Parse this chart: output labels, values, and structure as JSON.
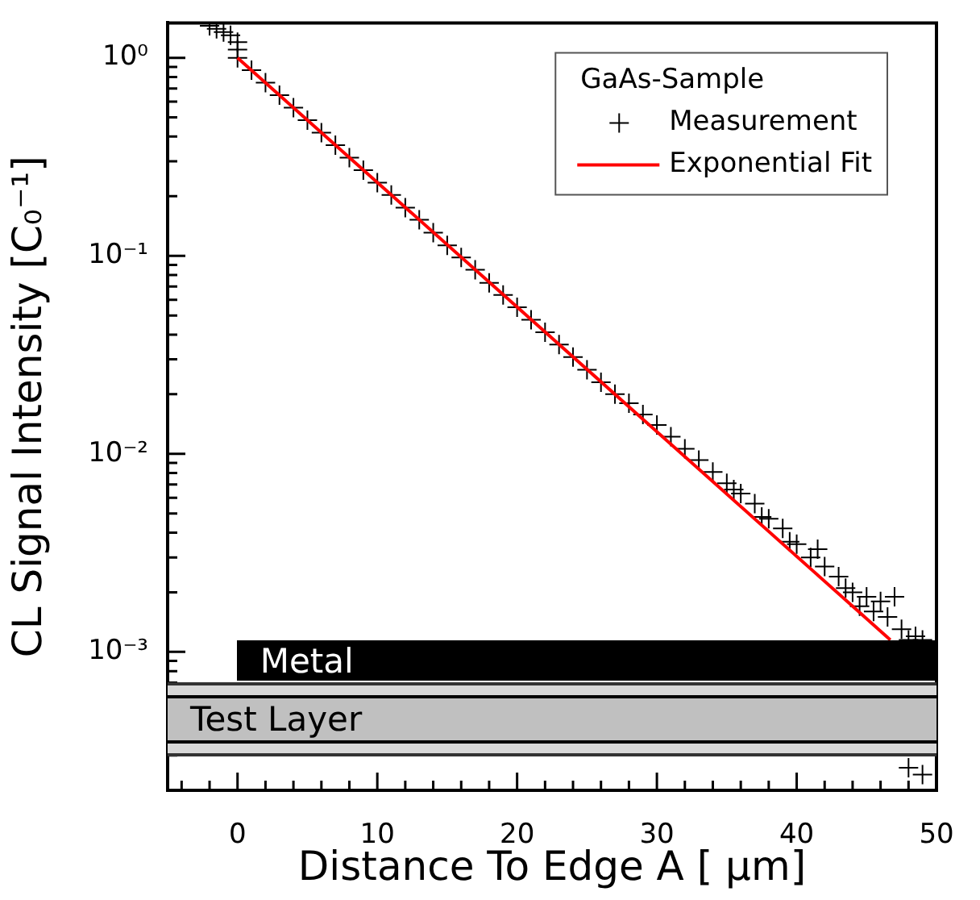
{
  "chart_data": {
    "type": "scatter",
    "xlabel": "Distance To Edge A [ µm]",
    "ylabel": "CL Signal Intensity [C₀⁻¹]",
    "legend_title": "GaAs-Sample",
    "legend": "top right",
    "log": "y",
    "xlim": [
      -5,
      50
    ],
    "ylim": [
      0.0002,
      1.5
    ],
    "xticks": [
      {
        "value": -4,
        "label": null
      },
      {
        "value": -2,
        "label": null
      },
      0,
      {
        "value": 2,
        "label": null
      },
      {
        "value": 4,
        "label": null
      },
      {
        "value": 6,
        "label": null
      },
      {
        "value": 8,
        "label": null
      },
      10,
      {
        "value": 12,
        "label": null
      },
      {
        "value": 14,
        "label": null
      },
      {
        "value": 16,
        "label": null
      },
      {
        "value": 18,
        "label": null
      },
      20,
      {
        "value": 22,
        "label": null
      },
      {
        "value": 24,
        "label": null
      },
      {
        "value": 26,
        "label": null
      },
      {
        "value": 28,
        "label": null
      },
      30,
      {
        "value": 32,
        "label": null
      },
      {
        "value": 34,
        "label": null
      },
      {
        "value": 36,
        "label": null
      },
      {
        "value": 38,
        "label": null
      },
      40,
      {
        "value": 42,
        "label": null
      },
      {
        "value": 44,
        "label": null
      },
      {
        "value": 46,
        "label": null
      },
      {
        "value": 48,
        "label": null
      },
      50
    ],
    "yticks": [
      {
        "value": 0.0003,
        "label": null
      },
      {
        "value": 0.0004,
        "label": null
      },
      {
        "value": 0.0005,
        "label": null
      },
      {
        "value": 0.0006,
        "label": null
      },
      {
        "value": 0.0007,
        "label": null
      },
      {
        "value": 0.0008,
        "label": null
      },
      {
        "value": 0.0009,
        "label": null
      },
      {
        "value": 0.001,
        "label": "10⁻³"
      },
      {
        "value": 0.002,
        "label": null
      },
      {
        "value": 0.003,
        "label": null
      },
      {
        "value": 0.004,
        "label": null
      },
      {
        "value": 0.005,
        "label": null
      },
      {
        "value": 0.006,
        "label": null
      },
      {
        "value": 0.007,
        "label": null
      },
      {
        "value": 0.008,
        "label": null
      },
      {
        "value": 0.009,
        "label": null
      },
      {
        "value": 0.01,
        "label": "10⁻²"
      },
      {
        "value": 0.02,
        "label": null
      },
      {
        "value": 0.03,
        "label": null
      },
      {
        "value": 0.04,
        "label": null
      },
      {
        "value": 0.05,
        "label": null
      },
      {
        "value": 0.06,
        "label": null
      },
      {
        "value": 0.07,
        "label": null
      },
      {
        "value": 0.08,
        "label": null
      },
      {
        "value": 0.09,
        "label": null
      },
      {
        "value": 0.1,
        "label": "10⁻¹"
      },
      {
        "value": 0.2,
        "label": null
      },
      {
        "value": 0.3,
        "label": null
      },
      {
        "value": 0.4,
        "label": null
      },
      {
        "value": 0.5,
        "label": null
      },
      {
        "value": 0.6,
        "label": null
      },
      {
        "value": 0.7,
        "label": null
      },
      {
        "value": 0.8,
        "label": null
      },
      {
        "value": 0.9,
        "label": null
      },
      {
        "value": 1,
        "label": "10⁰"
      }
    ],
    "annotations": [
      "Metal",
      "Test Layer"
    ],
    "series": [
      {
        "name": "Measurement",
        "marker": "cross",
        "color": "#000000",
        "x": [
          -2,
          -1.5,
          -1,
          -0.5,
          0,
          0,
          0,
          1,
          2,
          3,
          4,
          5,
          6,
          7,
          8,
          9,
          10,
          11,
          12,
          13,
          14,
          15,
          16,
          17,
          18,
          19,
          20,
          21,
          22,
          23,
          24,
          25,
          26,
          27,
          28,
          29,
          30,
          31,
          32,
          33,
          34,
          35,
          35.5,
          36,
          37,
          37.5,
          38,
          39,
          39.5,
          40,
          41,
          41.5,
          42,
          43,
          43.5,
          44,
          44.5,
          45,
          45.5,
          46,
          46.5,
          47,
          47.5,
          48,
          48.5,
          49,
          48,
          49
        ],
        "values": [
          1.45,
          1.4,
          1.35,
          1.3,
          1.2,
          1.1,
          1.0,
          0.865,
          0.748,
          0.647,
          0.56,
          0.484,
          0.419,
          0.362,
          0.313,
          0.271,
          0.234,
          0.203,
          0.175,
          0.152,
          0.131,
          0.113,
          0.098,
          0.085,
          0.073,
          0.0635,
          0.055,
          0.0475,
          0.0411,
          0.0356,
          0.0308,
          0.0266,
          0.023,
          0.02,
          0.018,
          0.0158,
          0.014,
          0.0122,
          0.0106,
          0.0093,
          0.0081,
          0.0071,
          0.0066,
          0.0063,
          0.0056,
          0.0048,
          0.0047,
          0.0042,
          0.0036,
          0.0035,
          0.003,
          0.0033,
          0.0027,
          0.0024,
          0.0021,
          0.002,
          0.0017,
          0.0019,
          0.0016,
          0.0018,
          0.0015,
          0.0019,
          0.0013,
          0.00115,
          0.0012,
          0.00115,
          0.00026,
          0.00024
        ]
      },
      {
        "name": "Exponential Fit",
        "type": "line",
        "color": "#ff0000",
        "x": [
          0,
          46.7
        ],
        "values": [
          1,
          0.00115
        ]
      }
    ]
  }
}
